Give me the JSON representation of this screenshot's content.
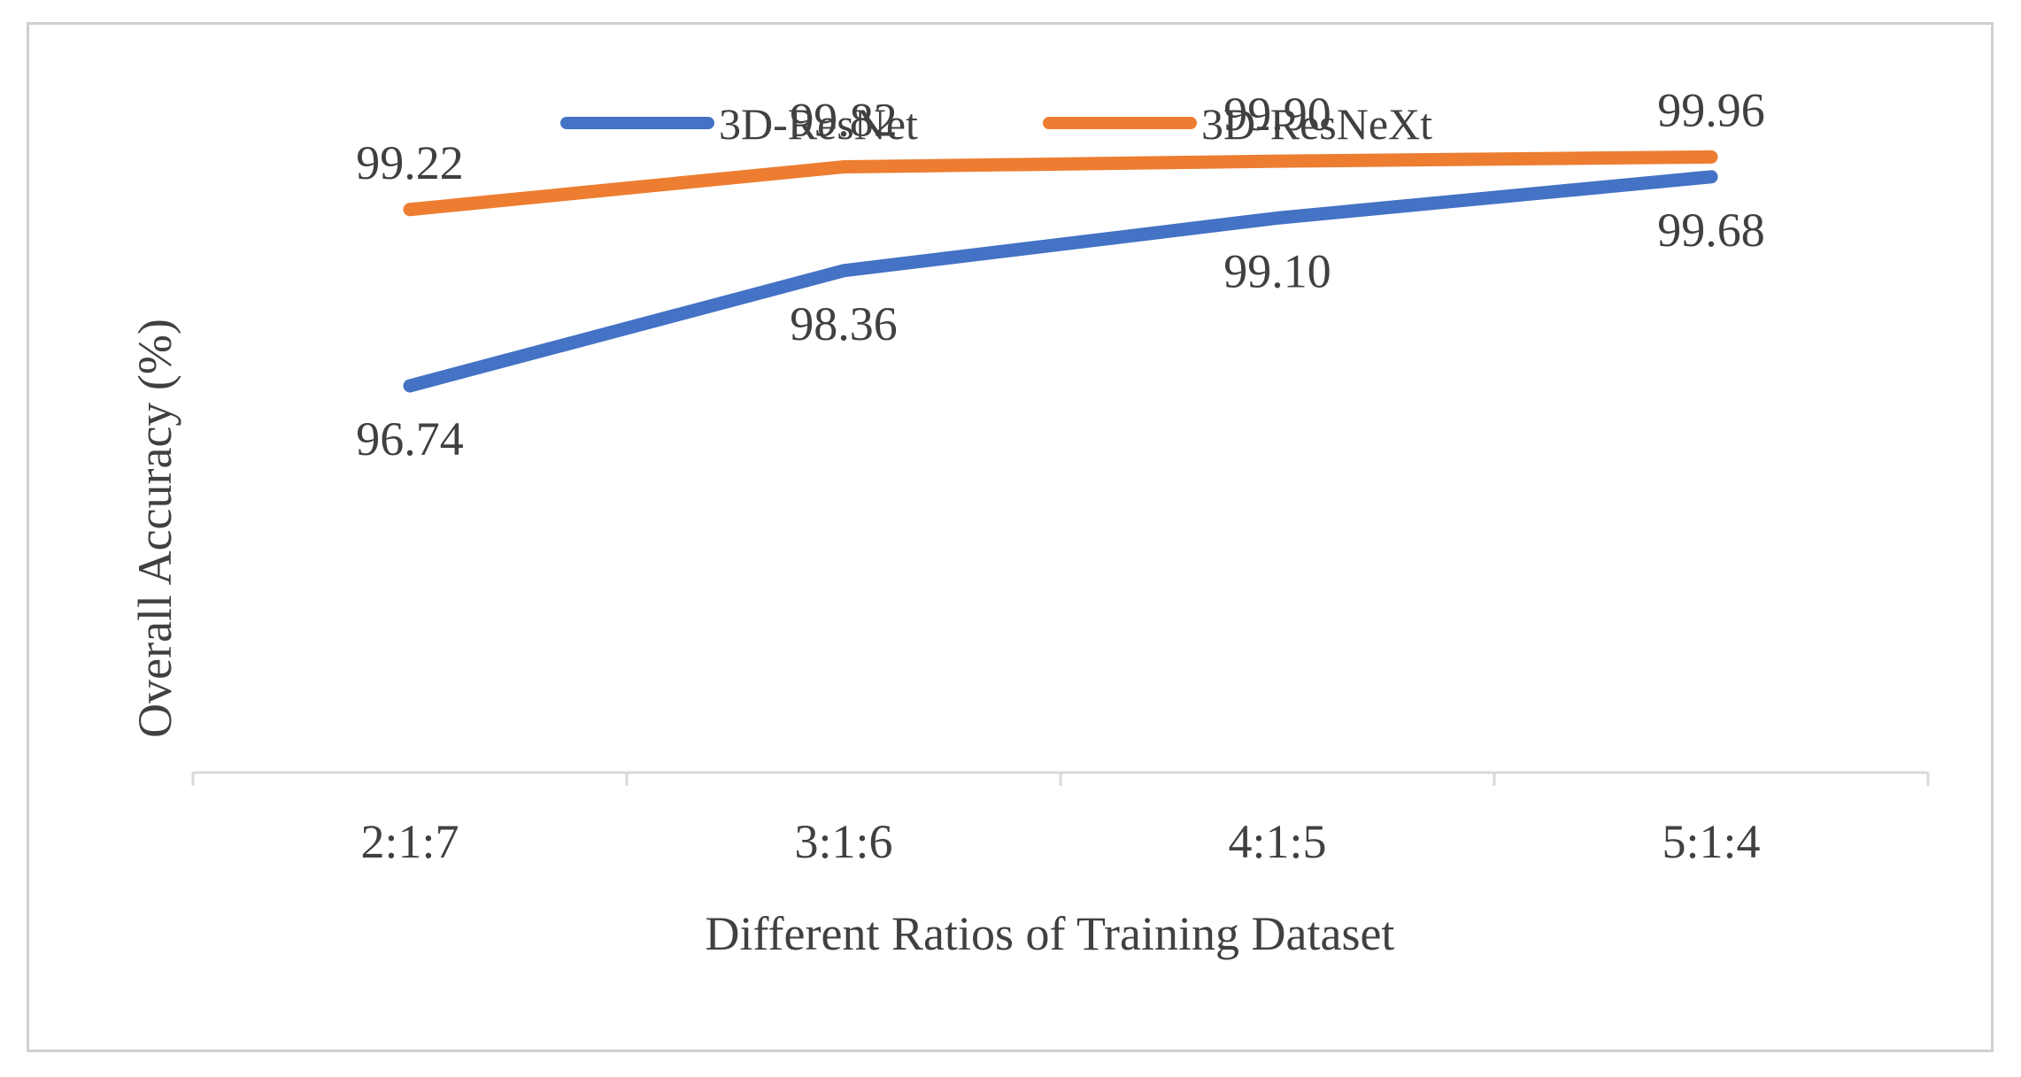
{
  "chart_data": {
    "type": "line",
    "title": "",
    "categories": [
      "2:1:7",
      "3:1:6",
      "4:1:5",
      "5:1:4"
    ],
    "series": [
      {
        "name": "3D-ResNet",
        "color": "#4472C4",
        "values": [
          96.74,
          98.36,
          99.1,
          99.68
        ],
        "labels": [
          "96.74",
          "98.36",
          "99.10",
          "99.68"
        ],
        "label_position": "below"
      },
      {
        "name": "3D-ResNeXt",
        "color": "#ED7D31",
        "values": [
          99.22,
          99.82,
          99.9,
          99.96
        ],
        "labels": [
          "99.22",
          "99.82",
          "99.90",
          "99.96"
        ],
        "label_position": "above"
      }
    ],
    "xlabel": "Different Ratios of Training Dataset",
    "ylabel": "Overall Accuracy (%)",
    "ylim": [
      91.3,
      100.3
    ],
    "grid": false,
    "legend_position": "top-center",
    "axis_color": "#d9d9d9"
  }
}
